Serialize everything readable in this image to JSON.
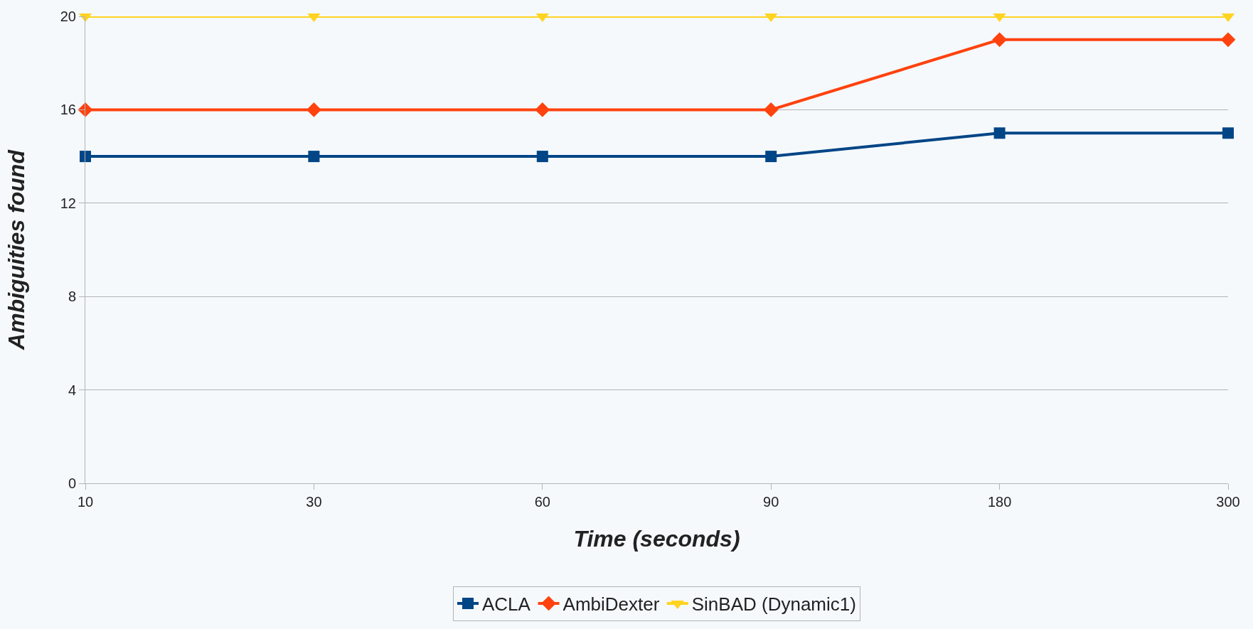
{
  "chart_data": {
    "type": "line",
    "xlabel": "Time (seconds)",
    "ylabel": "Ambiguities found",
    "categories": [
      "10",
      "30",
      "60",
      "90",
      "180",
      "300"
    ],
    "series": [
      {
        "name": "ACLA",
        "color": "#004586",
        "marker": "square",
        "values": [
          14,
          14,
          14,
          14,
          15,
          15
        ]
      },
      {
        "name": "AmbiDexter",
        "color": "#ff420e",
        "marker": "diamond",
        "values": [
          16,
          16,
          16,
          16,
          19,
          19
        ]
      },
      {
        "name": "SinBAD (Dynamic1)",
        "color": "#ffd320",
        "marker": "triangle",
        "values": [
          20,
          20,
          20,
          20,
          20,
          20
        ]
      }
    ],
    "ylim": [
      0,
      20
    ],
    "yticks": [
      0,
      4,
      8,
      12,
      16,
      20
    ],
    "grid": "y",
    "legend": "bottom",
    "line_style": "solid"
  }
}
